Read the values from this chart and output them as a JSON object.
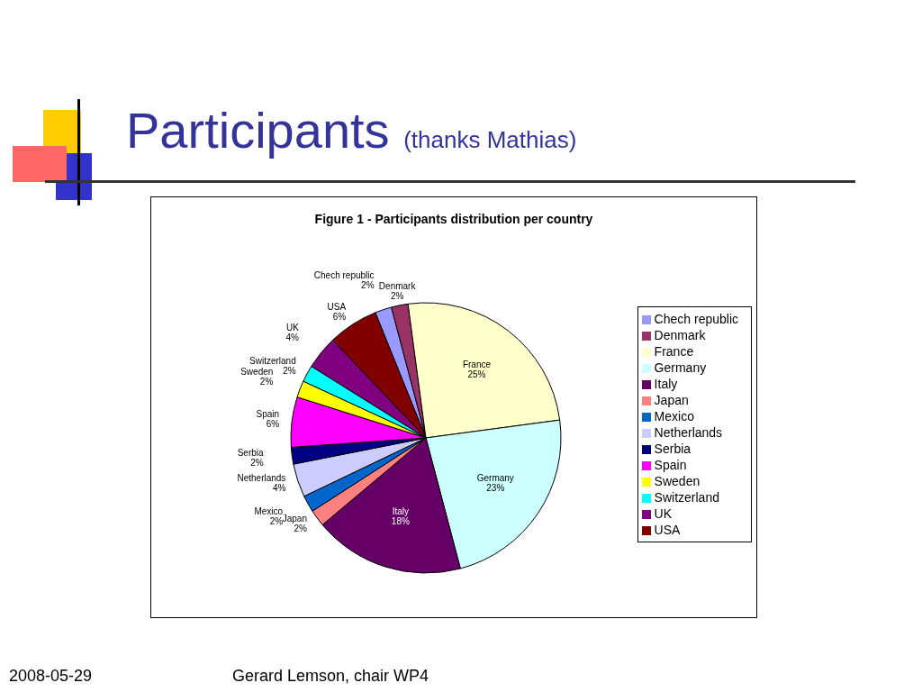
{
  "chart_data": {
    "type": "pie",
    "title": "Figure 1 - Participants distribution per country",
    "categories": [
      "Chech republic",
      "Denmark",
      "France",
      "Germany",
      "Italy",
      "Japan",
      "Mexico",
      "Netherlands",
      "Serbia",
      "Spain",
      "Sweden",
      "Switzerland",
      "UK",
      "USA"
    ],
    "values": [
      2,
      2,
      25,
      23,
      18,
      2,
      2,
      4,
      2,
      6,
      2,
      2,
      4,
      6
    ],
    "value_labels": [
      "2%",
      "2%",
      "25%",
      "23%",
      "18%",
      "2%",
      "2%",
      "4%",
      "2%",
      "6%",
      "2%",
      "2%",
      "4%",
      "6%"
    ],
    "colors": [
      "#9999ff",
      "#993366",
      "#ffffcc",
      "#ccffff",
      "#660066",
      "#ff8080",
      "#0066cc",
      "#ccccff",
      "#000080",
      "#ff00ff",
      "#ffff00",
      "#00ffff",
      "#800080",
      "#800000"
    ],
    "legend": "right",
    "annotations": [
      "Participants",
      "(thanks Mathias)",
      "2008-05-29",
      "Gerard Lemson, chair WP4"
    ]
  }
}
